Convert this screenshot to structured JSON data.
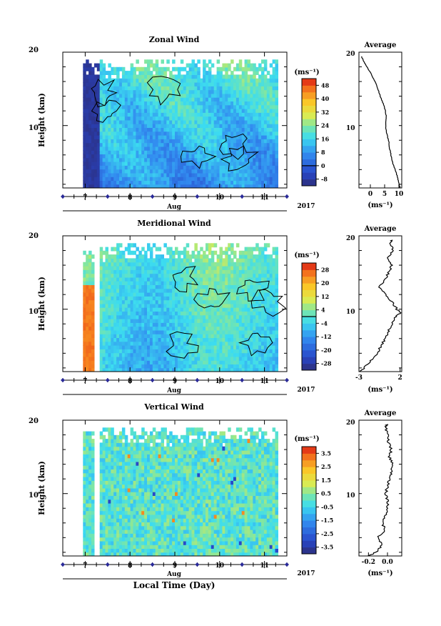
{
  "figure": {
    "xlabel_bottom": "Local Time (Day)",
    "year_label": "2017",
    "month_label": "Aug",
    "colorbar_unit": "(ms⁻¹)",
    "avg_unit": "(ms⁻¹)"
  },
  "chart_data": [
    {
      "type": "heatmap",
      "title": "Zonal Wind",
      "ylabel": "Height (km)",
      "xlabel": "Aug",
      "x_ticks": [
        "7",
        "8",
        "9",
        "10",
        "11"
      ],
      "x_range_day": [
        6.5,
        11.5
      ],
      "y_ticks": [
        "10",
        "20"
      ],
      "ylim_km": [
        1.5,
        20
      ],
      "colorbar": {
        "unit": "(ms⁻¹)",
        "ticks": [
          "48",
          "40",
          "32",
          "24",
          "16",
          "8",
          "0",
          "-8"
        ],
        "range": [
          -12,
          52
        ],
        "zero_line": 0
      },
      "average": {
        "title": "Average",
        "xlabel": "(ms⁻¹)",
        "x_ticks": [
          "0",
          "5",
          "10"
        ],
        "xlim": [
          -4,
          11
        ],
        "profile": {
          "height_km": [
            1.5,
            2,
            3,
            4,
            5,
            6,
            7,
            8,
            9,
            10,
            11,
            12,
            13,
            14,
            15,
            16,
            17,
            18,
            19,
            19.5
          ],
          "value": [
            10.5,
            10,
            9.5,
            8.6,
            7.8,
            7.2,
            6.7,
            6.4,
            5.6,
            5.4,
            5.6,
            5.3,
            4.5,
            3.5,
            2.6,
            1.6,
            0.3,
            -1.2,
            -2.6,
            -3.2
          ]
        }
      }
    },
    {
      "type": "heatmap",
      "title": "Meridional Wind",
      "ylabel": "Height (km)",
      "xlabel": "Aug",
      "x_ticks": [
        "7",
        "8",
        "9",
        "10",
        "11"
      ],
      "x_range_day": [
        6.5,
        11.5
      ],
      "y_ticks": [
        "10",
        "20"
      ],
      "ylim_km": [
        1.5,
        20
      ],
      "colorbar": {
        "unit": "(ms⁻¹)",
        "ticks": [
          "28",
          "20",
          "12",
          "4",
          "-4",
          "-12",
          "-20",
          "-28"
        ],
        "range": [
          -32,
          32
        ],
        "zero_line": 0
      },
      "average": {
        "title": "Average",
        "xlabel": "(ms⁻¹)",
        "x_ticks": [
          "-3",
          "2"
        ],
        "xlim": [
          -3,
          2.2
        ],
        "profile": {
          "height_km": [
            1.5,
            2,
            3,
            4,
            5,
            6,
            7,
            8,
            9,
            9.5,
            10,
            11,
            12,
            13,
            14,
            15,
            16,
            17,
            18,
            19,
            19.5
          ],
          "value": [
            -2.8,
            -2.4,
            -1.5,
            -0.8,
            -0.3,
            0.2,
            0.6,
            1.0,
            1.5,
            2.0,
            1.6,
            1.0,
            0.2,
            -0.5,
            0.2,
            0.6,
            1.0,
            0.5,
            1.2,
            0.8,
            1.0
          ]
        }
      }
    },
    {
      "type": "heatmap",
      "title": "Vertical Wind",
      "ylabel": "Height (km)",
      "xlabel": "Aug",
      "x_ticks": [
        "7",
        "8",
        "9",
        "10",
        "11"
      ],
      "x_range_day": [
        6.5,
        11.5
      ],
      "y_ticks": [
        "10",
        "20"
      ],
      "ylim_km": [
        1.5,
        20
      ],
      "colorbar": {
        "unit": "(ms⁻¹)",
        "ticks": [
          "3.5",
          "2.5",
          "1.5",
          "0.5",
          "-0.5",
          "-1.5",
          "-2.5",
          "-3.5"
        ],
        "range": [
          -4,
          4
        ],
        "zero_line": null
      },
      "average": {
        "title": "Average",
        "xlabel": "(ms⁻¹)",
        "x_ticks": [
          "-0.2",
          "0.0"
        ],
        "xlim": [
          -0.3,
          0.15
        ],
        "profile": {
          "height_km": [
            1.5,
            2,
            3,
            4,
            5,
            6,
            7,
            8,
            9,
            10,
            11,
            12,
            13,
            14,
            15,
            16,
            17,
            18,
            19,
            19.5
          ],
          "value": [
            -0.2,
            -0.12,
            -0.06,
            -0.1,
            -0.03,
            -0.05,
            -0.02,
            0.0,
            0.0,
            -0.02,
            0.0,
            0.02,
            0.04,
            0.05,
            0.02,
            0.04,
            0.01,
            0.0,
            -0.02,
            0.0
          ]
        }
      }
    }
  ]
}
